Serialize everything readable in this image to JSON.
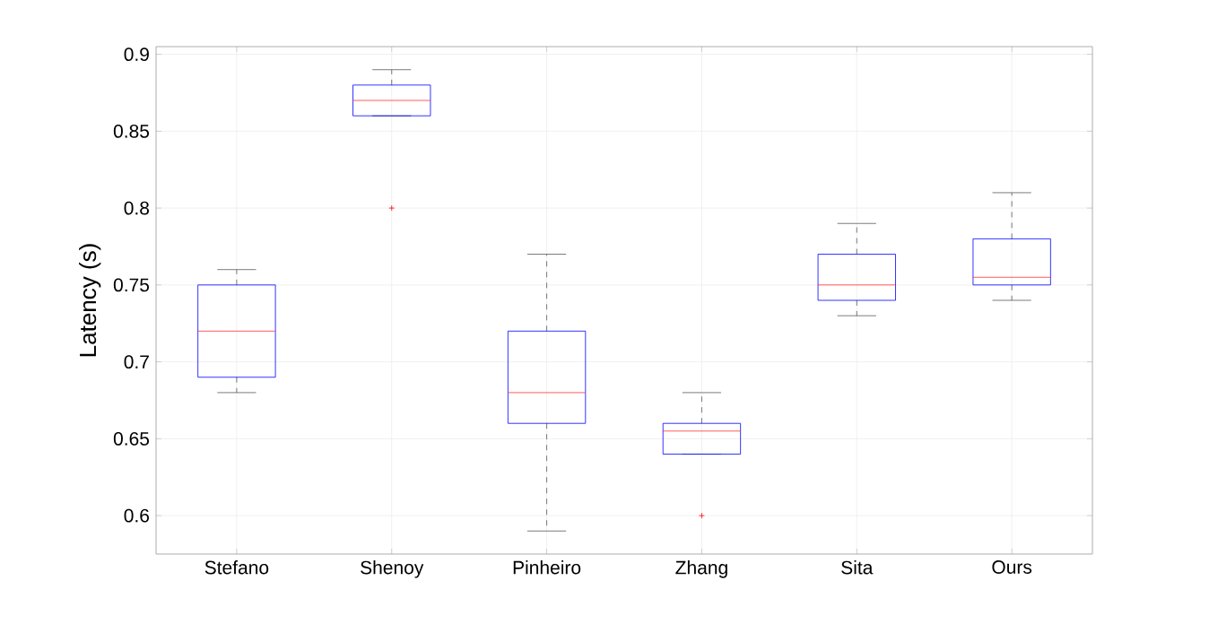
{
  "chart_data": {
    "type": "box",
    "ylabel": "Latency (s)",
    "categories": [
      "Stefano",
      "Shenoy",
      "Pinheiro",
      "Zhang",
      "Sita",
      "Ours"
    ],
    "boxes": [
      {
        "low": 0.68,
        "q1": 0.69,
        "median": 0.72,
        "q3": 0.75,
        "high": 0.76
      },
      {
        "low": 0.86,
        "q1": 0.86,
        "median": 0.87,
        "q3": 0.88,
        "high": 0.89,
        "outliers": [
          0.8
        ]
      },
      {
        "low": 0.59,
        "q1": 0.66,
        "median": 0.68,
        "q3": 0.72,
        "high": 0.77
      },
      {
        "low": 0.64,
        "q1": 0.64,
        "median": 0.655,
        "q3": 0.66,
        "high": 0.68,
        "outliers": [
          0.6
        ]
      },
      {
        "low": 0.73,
        "q1": 0.74,
        "median": 0.75,
        "q3": 0.77,
        "high": 0.79
      },
      {
        "low": 0.74,
        "q1": 0.75,
        "median": 0.755,
        "q3": 0.78,
        "high": 0.81
      }
    ],
    "color": "#0000ff",
    "ylim": [
      0.575,
      0.905
    ],
    "yticks": [
      0.6,
      0.65,
      0.7,
      0.75,
      0.8,
      0.85,
      0.9
    ],
    "grid": true
  }
}
